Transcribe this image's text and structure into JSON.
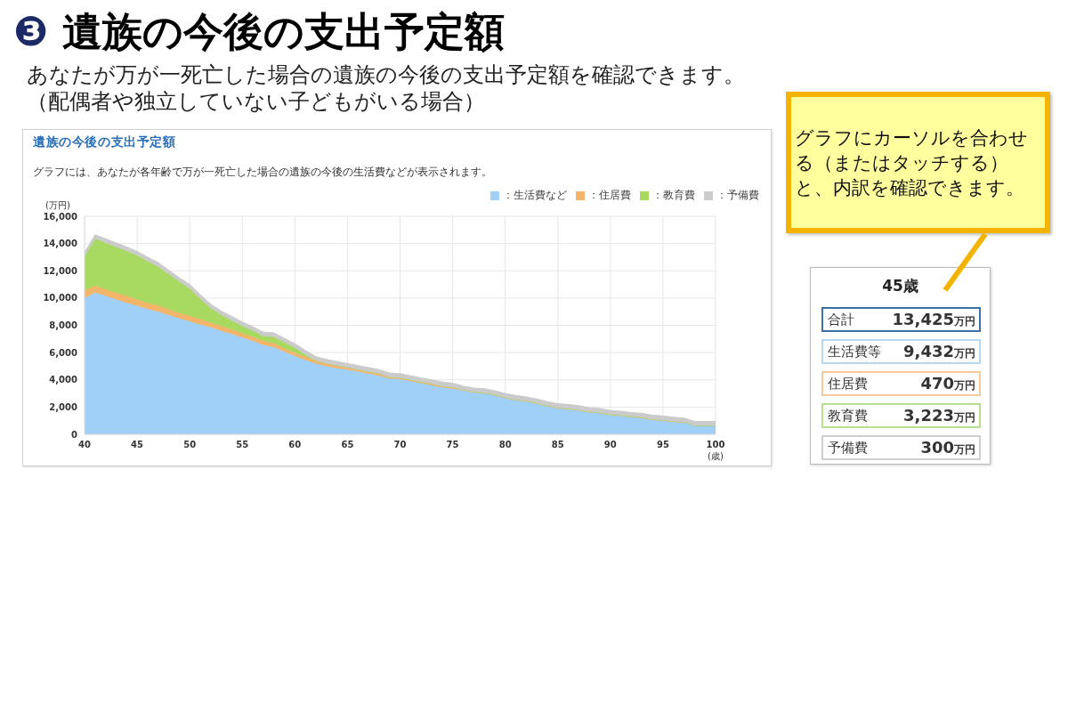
{
  "chart_data": [
    {
      "type": "other",
      "title": "❸ 遺族の今後の支出予定額",
      "annotations": [
        "あなたが万が一死亡した場合の遺族の今後の支出予定額を確認できます。",
        "（配偶者や独立していない子どもがいる場合）"
      ]
    },
    {
      "type": "area",
      "stacked": true,
      "title": "遺族の今後の支出予定額",
      "subtitle": "グラフには、あなたが各年齢で万が一死亡した場合の遺族の今後の生活費などが表示されます。",
      "xlabel": "(歳)",
      "ylabel": "(万円)",
      "x": [
        40,
        41,
        42,
        43,
        44,
        45,
        46,
        47,
        48,
        49,
        50,
        51,
        52,
        53,
        54,
        55,
        56,
        57,
        58,
        59,
        60,
        61,
        62,
        63,
        64,
        65,
        66,
        67,
        68,
        69,
        70,
        71,
        72,
        73,
        74,
        75,
        76,
        77,
        78,
        79,
        80,
        81,
        82,
        83,
        84,
        85,
        86,
        87,
        88,
        89,
        90,
        91,
        92,
        93,
        94,
        95,
        96,
        97,
        98,
        99,
        100
      ],
      "series": [
        {
          "name": "：生活費など",
          "color": "#a0cff7",
          "values": [
            10000,
            10400,
            10150,
            9900,
            9650,
            9432,
            9200,
            9000,
            8750,
            8500,
            8300,
            8050,
            7850,
            7600,
            7350,
            7100,
            6850,
            6550,
            6400,
            6050,
            5750,
            5450,
            5200,
            5000,
            4850,
            4750,
            4600,
            4450,
            4300,
            4100,
            4050,
            3900,
            3750,
            3600,
            3450,
            3350,
            3200,
            3050,
            3000,
            2850,
            2650,
            2500,
            2400,
            2250,
            2050,
            1900,
            1850,
            1750,
            1600,
            1550,
            1400,
            1350,
            1250,
            1200,
            1050,
            1000,
            900,
            850,
            650,
            650,
            650
          ]
        },
        {
          "name": "：住居費",
          "color": "#f3b56a",
          "values": [
            550,
            500,
            500,
            500,
            500,
            470,
            450,
            450,
            450,
            400,
            400,
            400,
            350,
            350,
            350,
            300,
            300,
            300,
            300,
            250,
            250,
            250,
            200,
            200,
            200,
            150,
            150,
            150,
            150,
            100,
            100,
            100,
            100,
            100,
            100,
            100,
            50,
            50,
            50,
            50,
            50,
            50,
            50,
            50,
            50,
            50,
            50,
            50,
            50,
            50,
            50,
            50,
            50,
            50,
            50,
            50,
            50,
            50,
            0,
            0,
            0
          ]
        },
        {
          "name": "：教育費",
          "color": "#a8da62",
          "values": [
            2500,
            3450,
            3400,
            3350,
            3300,
            3223,
            3050,
            2850,
            2550,
            2300,
            2000,
            1500,
            1050,
            800,
            650,
            550,
            450,
            350,
            450,
            450,
            350,
            150,
            0,
            0,
            0,
            0,
            0,
            0,
            0,
            0,
            0,
            0,
            0,
            0,
            0,
            0,
            0,
            0,
            0,
            0,
            0,
            0,
            0,
            0,
            0,
            0,
            0,
            0,
            0,
            0,
            0,
            0,
            0,
            0,
            0,
            0,
            0,
            0,
            0,
            0,
            0
          ]
        },
        {
          "name": "：予備費",
          "color": "#cbcbcb",
          "values": [
            300,
            300,
            300,
            300,
            300,
            300,
            300,
            300,
            300,
            300,
            300,
            300,
            300,
            300,
            300,
            300,
            300,
            300,
            300,
            300,
            300,
            300,
            300,
            300,
            300,
            300,
            300,
            300,
            300,
            300,
            300,
            300,
            300,
            300,
            300,
            300,
            300,
            300,
            300,
            300,
            300,
            300,
            300,
            300,
            300,
            300,
            300,
            300,
            300,
            300,
            300,
            300,
            300,
            300,
            300,
            300,
            300,
            300,
            300,
            300,
            300
          ]
        }
      ],
      "xlim": [
        40,
        100
      ],
      "xticks": [
        40,
        45,
        50,
        55,
        60,
        65,
        70,
        75,
        80,
        85,
        90,
        95,
        100
      ],
      "ylim": [
        0,
        16000
      ],
      "yticks": [
        0,
        {
          "value": 2000,
          "label": "2,000"
        },
        {
          "value": 4000,
          "label": "4,000"
        },
        {
          "value": 6000,
          "label": "6,000"
        },
        {
          "value": 8000,
          "label": "8,000"
        },
        {
          "value": 10000,
          "label": "10,000"
        },
        {
          "value": 12000,
          "label": "12,000"
        },
        {
          "value": 14000,
          "label": "14,000"
        },
        {
          "value": 16000,
          "label": "16,000"
        }
      ],
      "grid": true,
      "legend": "top right"
    },
    {
      "type": "other",
      "annotations": [
        "グラフにカーソルを合わせる（またはタッチする）と、内訳を確認できます。"
      ]
    },
    {
      "type": "other",
      "title": "45歳",
      "categories": [
        "合計",
        "生活費等",
        "住居費",
        "教育費",
        "予備費"
      ],
      "value_labels": [
        "13,425万円",
        "9,432万円",
        "470万円",
        "3,223万円",
        "300万円"
      ]
    }
  ]
}
